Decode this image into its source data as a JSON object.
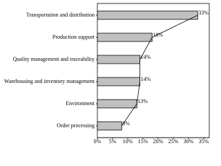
{
  "chart_data": {
    "type": "bar",
    "orientation": "horizontal",
    "categories": [
      "Transportation and distribution",
      "Production support",
      "Quality management and traceability",
      "Warehousing and inventory management",
      "Environment",
      "Order processing"
    ],
    "values": [
      33,
      18,
      14,
      14,
      13,
      8
    ],
    "value_labels": [
      "33%",
      "18%",
      "14%",
      "14%",
      "13%",
      "8%"
    ],
    "color": "#c0c0c0",
    "xlim": [
      0,
      35
    ],
    "xticks": [
      {
        "value": 0,
        "label": "0%"
      },
      {
        "value": 5,
        "label": "5%"
      },
      {
        "value": 10,
        "label": "10%"
      },
      {
        "value": 15,
        "label": "15%"
      },
      {
        "value": 20,
        "label": "20%"
      },
      {
        "value": 25,
        "label": "25%"
      },
      {
        "value": 30,
        "label": "30%"
      },
      {
        "value": 35,
        "label": "35%"
      }
    ],
    "connect_line": true
  }
}
